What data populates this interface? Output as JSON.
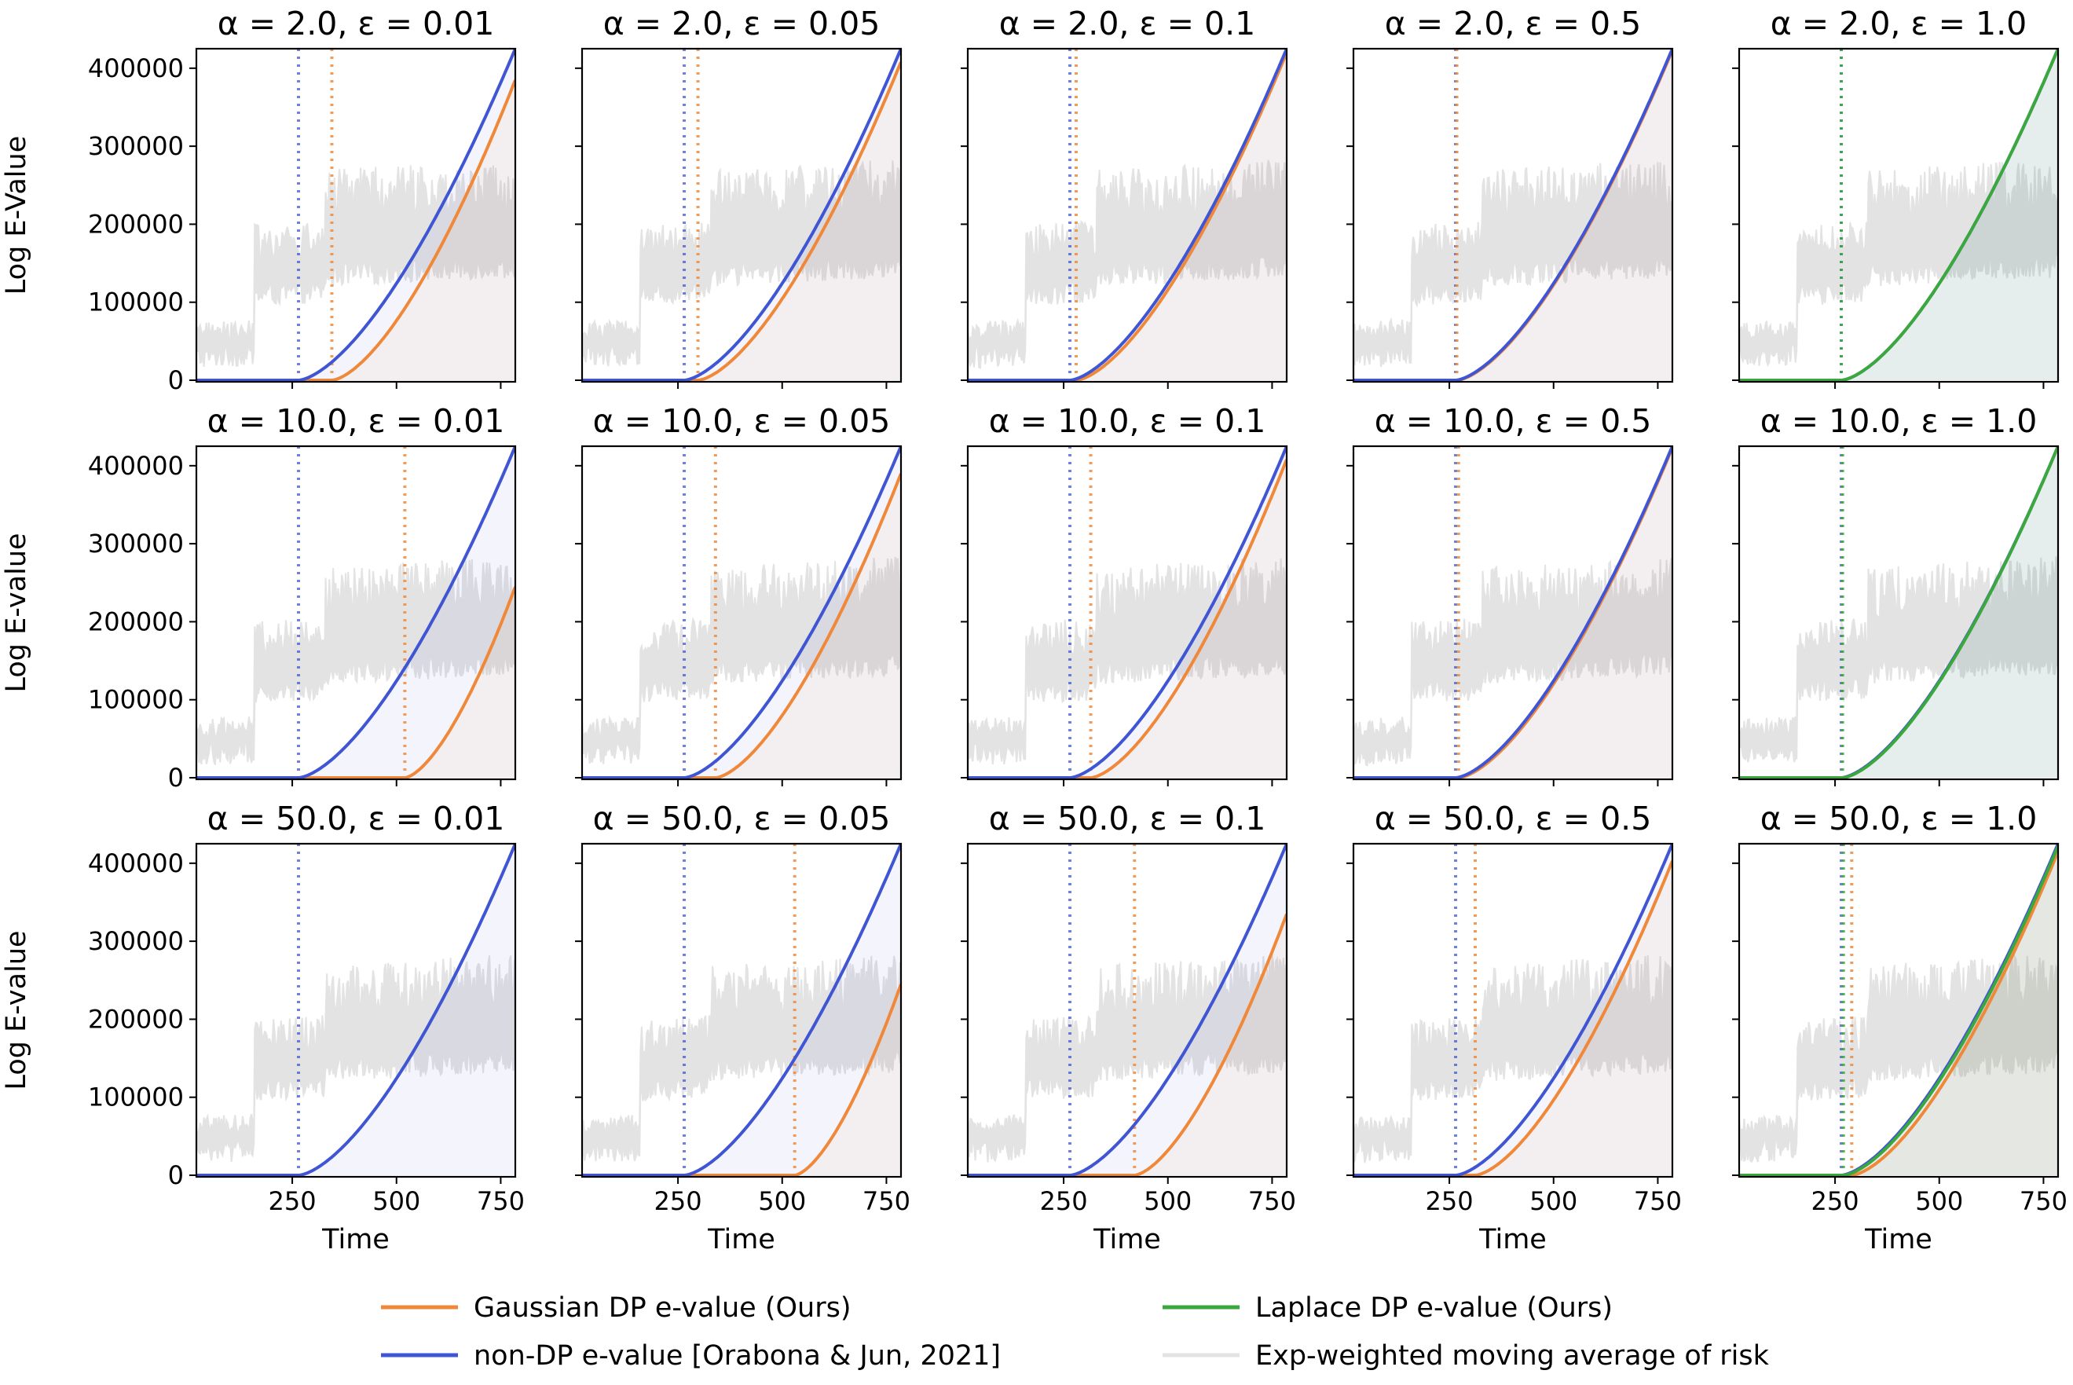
{
  "colors": {
    "gaussian": "#f0883a",
    "nondp": "#3f55d3",
    "laplace": "#3aa83c",
    "ewma": "#e3e3e3"
  },
  "legend": [
    {
      "key": "gaussian",
      "label": "Gaussian DP e-value (Ours)"
    },
    {
      "key": "nondp",
      "label": "non-DP e-value [Orabona & Jun, 2021]"
    },
    {
      "key": "laplace",
      "label": "Laplace DP e-value (Ours)"
    },
    {
      "key": "ewma",
      "label": "Exp-weighted moving average of risk"
    }
  ],
  "chart_data": {
    "type": "line",
    "xlabel": "Time",
    "ylabel": "Log E-Value",
    "xlim": [
      20,
      785
    ],
    "ylim": [
      -2000,
      425000
    ],
    "xticks": [
      250,
      500,
      750
    ],
    "yticks": [
      0,
      100000,
      200000,
      300000,
      400000
    ],
    "nondp_start": 265,
    "nondp_end_value": 425000,
    "dp_end_value": 425000,
    "ewma": {
      "segments": [
        {
          "x": [
            20,
            160
          ],
          "low": 15000,
          "high": 75000
        },
        {
          "x": [
            160,
            330
          ],
          "low": 95000,
          "high": 200000
        },
        {
          "x": [
            330,
            785
          ],
          "low": 120000,
          "high": 270000
        }
      ]
    },
    "panels": [
      {
        "title": "α = 2.0, ε = 0.01",
        "row": 0,
        "col": 0,
        "ylabel": "Log E-Value",
        "dp": "gaussian",
        "dp_start": 345,
        "dp_end": 385000
      },
      {
        "title": "α = 2.0, ε = 0.05",
        "row": 0,
        "col": 1,
        "ylabel": "",
        "dp": "gaussian",
        "dp_start": 298,
        "dp_end": 408000
      },
      {
        "title": "α = 2.0, ε = 0.1",
        "row": 0,
        "col": 2,
        "ylabel": "",
        "dp": "gaussian",
        "dp_start": 280,
        "dp_end": 420000
      },
      {
        "title": "α = 2.0, ε = 0.5",
        "row": 0,
        "col": 3,
        "ylabel": "",
        "dp": "gaussian",
        "dp_start": 268,
        "dp_end": 423000
      },
      {
        "title": "α = 2.0, ε = 1.0",
        "row": 0,
        "col": 4,
        "ylabel": "",
        "dp": "laplace",
        "dp_start": 265,
        "dp_end": 425000
      },
      {
        "title": "α = 10.0, ε = 0.01",
        "row": 1,
        "col": 0,
        "ylabel": "Log E-value",
        "dp": "gaussian",
        "dp_start": 520,
        "dp_end": 245000
      },
      {
        "title": "α = 10.0, ε = 0.05",
        "row": 1,
        "col": 1,
        "ylabel": "",
        "dp": "gaussian",
        "dp_start": 340,
        "dp_end": 390000
      },
      {
        "title": "α = 10.0, ε = 0.1",
        "row": 1,
        "col": 2,
        "ylabel": "",
        "dp": "gaussian",
        "dp_start": 315,
        "dp_end": 408000
      },
      {
        "title": "α = 10.0, ε = 0.5",
        "row": 1,
        "col": 3,
        "ylabel": "",
        "dp": "gaussian",
        "dp_start": 272,
        "dp_end": 423000
      },
      {
        "title": "α = 10.0, ε = 1.0",
        "row": 1,
        "col": 4,
        "ylabel": "",
        "dp": "laplace",
        "dp_start": 268,
        "dp_end": 425000
      },
      {
        "title": "α = 50.0, ε = 0.01",
        "row": 2,
        "col": 0,
        "ylabel": "Log E-value",
        "dp": "none",
        "dp_start": 785,
        "dp_end": 0
      },
      {
        "title": "α = 50.0, ε = 0.05",
        "row": 2,
        "col": 1,
        "ylabel": "",
        "dp": "gaussian",
        "dp_start": 530,
        "dp_end": 245000
      },
      {
        "title": "α = 50.0, ε = 0.1",
        "row": 2,
        "col": 2,
        "ylabel": "",
        "dp": "gaussian",
        "dp_start": 420,
        "dp_end": 335000
      },
      {
        "title": "α = 50.0, ε = 0.5",
        "row": 2,
        "col": 3,
        "ylabel": "",
        "dp": "gaussian",
        "dp_start": 312,
        "dp_end": 403000
      },
      {
        "title": "α = 50.0, ε = 1.0",
        "row": 2,
        "col": 4,
        "ylabel": "",
        "dp": "laplace_gaussian",
        "dp_start": 290,
        "dp_end": 415000,
        "laplace_start": 270,
        "laplace_end": 422000
      }
    ]
  }
}
